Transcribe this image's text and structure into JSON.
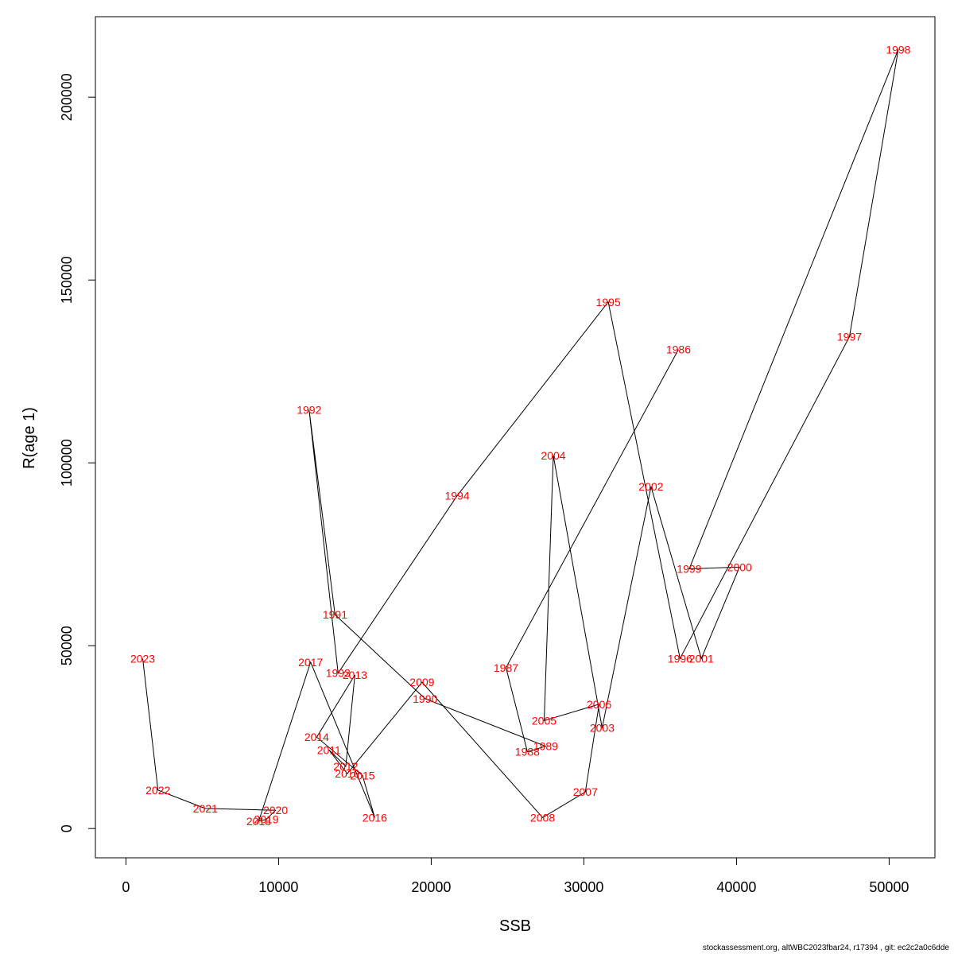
{
  "chart_data": {
    "type": "line",
    "title": "",
    "xlabel": "SSB",
    "ylabel": "R(age 1)",
    "xlim": [
      -2000,
      53000
    ],
    "ylim": [
      -8000,
      222000
    ],
    "xticks": [
      0,
      10000,
      20000,
      30000,
      40000,
      50000
    ],
    "yticks": [
      0,
      50000,
      100000,
      150000,
      200000
    ],
    "grid": false,
    "line_color": "#000000",
    "label_color": "#ff0000",
    "points": [
      {
        "label": "1986",
        "x": 36200,
        "y": 131000
      },
      {
        "label": "1987",
        "x": 24900,
        "y": 44000
      },
      {
        "label": "1988",
        "x": 26300,
        "y": 21000
      },
      {
        "label": "1989",
        "x": 27500,
        "y": 22500
      },
      {
        "label": "1990",
        "x": 19600,
        "y": 35500
      },
      {
        "label": "1991",
        "x": 13700,
        "y": 58500
      },
      {
        "label": "1992",
        "x": 12000,
        "y": 114500
      },
      {
        "label": "1993",
        "x": 13900,
        "y": 42500
      },
      {
        "label": "1994",
        "x": 21700,
        "y": 91000
      },
      {
        "label": "1995",
        "x": 31600,
        "y": 144000
      },
      {
        "label": "1996",
        "x": 36300,
        "y": 46500
      },
      {
        "label": "1997",
        "x": 47400,
        "y": 134500
      },
      {
        "label": "1998",
        "x": 50600,
        "y": 213000
      },
      {
        "label": "1999",
        "x": 36900,
        "y": 71000
      },
      {
        "label": "2000",
        "x": 40200,
        "y": 71500
      },
      {
        "label": "2001",
        "x": 37700,
        "y": 46500
      },
      {
        "label": "2002",
        "x": 34400,
        "y": 93500
      },
      {
        "label": "2003",
        "x": 31200,
        "y": 27500
      },
      {
        "label": "2004",
        "x": 28000,
        "y": 102000
      },
      {
        "label": "2005",
        "x": 27400,
        "y": 29500
      },
      {
        "label": "2006",
        "x": 31000,
        "y": 34000
      },
      {
        "label": "2007",
        "x": 30100,
        "y": 10000
      },
      {
        "label": "2008",
        "x": 27300,
        "y": 3000
      },
      {
        "label": "2009",
        "x": 19400,
        "y": 40000
      },
      {
        "label": "2010",
        "x": 14500,
        "y": 15000
      },
      {
        "label": "2011",
        "x": 13300,
        "y": 21500
      },
      {
        "label": "2012",
        "x": 14400,
        "y": 17000
      },
      {
        "label": "2013",
        "x": 15000,
        "y": 42000
      },
      {
        "label": "2014",
        "x": 12500,
        "y": 25000
      },
      {
        "label": "2015",
        "x": 15500,
        "y": 14500
      },
      {
        "label": "2016",
        "x": 16300,
        "y": 3000
      },
      {
        "label": "2017",
        "x": 12100,
        "y": 45500
      },
      {
        "label": "2018",
        "x": 8700,
        "y": 2000
      },
      {
        "label": "2019",
        "x": 9200,
        "y": 2500
      },
      {
        "label": "2020",
        "x": 9800,
        "y": 5000
      },
      {
        "label": "2021",
        "x": 5200,
        "y": 5500
      },
      {
        "label": "2022",
        "x": 2100,
        "y": 10500
      },
      {
        "label": "2023",
        "x": 1100,
        "y": 46500
      }
    ]
  },
  "footer": {
    "text": "stockassessment.org, altWBC2023fbar24, r17394 , git: ec2c2a0c6dde"
  }
}
